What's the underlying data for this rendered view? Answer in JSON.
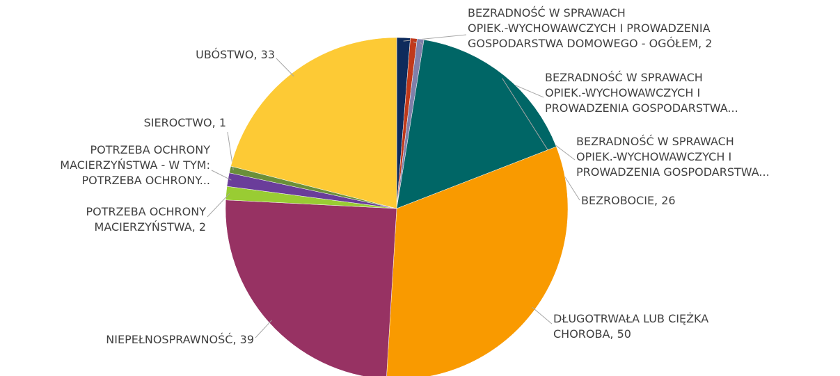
{
  "chart_data": {
    "type": "pie",
    "labels": [
      "BEZRADNOŚĆ W SPRAWACH\nOPIEK.-WYCHOWAWCZYCH I PROWADZENIA\nGOSPODARSTWA DOMOWEGO - OGÓŁEM, 2",
      "BEZRADNOŚĆ W SPRAWACH\nOPIEK.-WYCHOWAWCZYCH I\nPROWADZENIA GOSPODARSTWA...",
      "BEZRADNOŚĆ W SPRAWACH\nOPIEK.-WYCHOWAWCZYCH I\nPROWADZENIA GOSPODARSTWA...",
      "BEZROBOCIE, 26",
      "DŁUGOTRWAŁA LUB CIĘŻKA\nCHOROBA, 50",
      "NIEPEŁNOSPRAWNOŚĆ, 39",
      "POTRZEBA OCHRONY\nMACIERZYŃSTWA, 2",
      "POTRZEBA OCHRONY\nMACIERZYŃSTWA - W TYM:\nPOTRZEBA OCHRONY...",
      "SIEROCTWO, 1",
      "UBÓSTWO, 33"
    ],
    "values": [
      2,
      1,
      1,
      26,
      50,
      39,
      2,
      2,
      1,
      33
    ],
    "colors": [
      "#0e2b5c",
      "#c0391b",
      "#8080aa",
      "#006666",
      "#f99a00",
      "#973263",
      "#99cc33",
      "#6a3d9a",
      "#6a8f3a",
      "#fdca35"
    ]
  }
}
